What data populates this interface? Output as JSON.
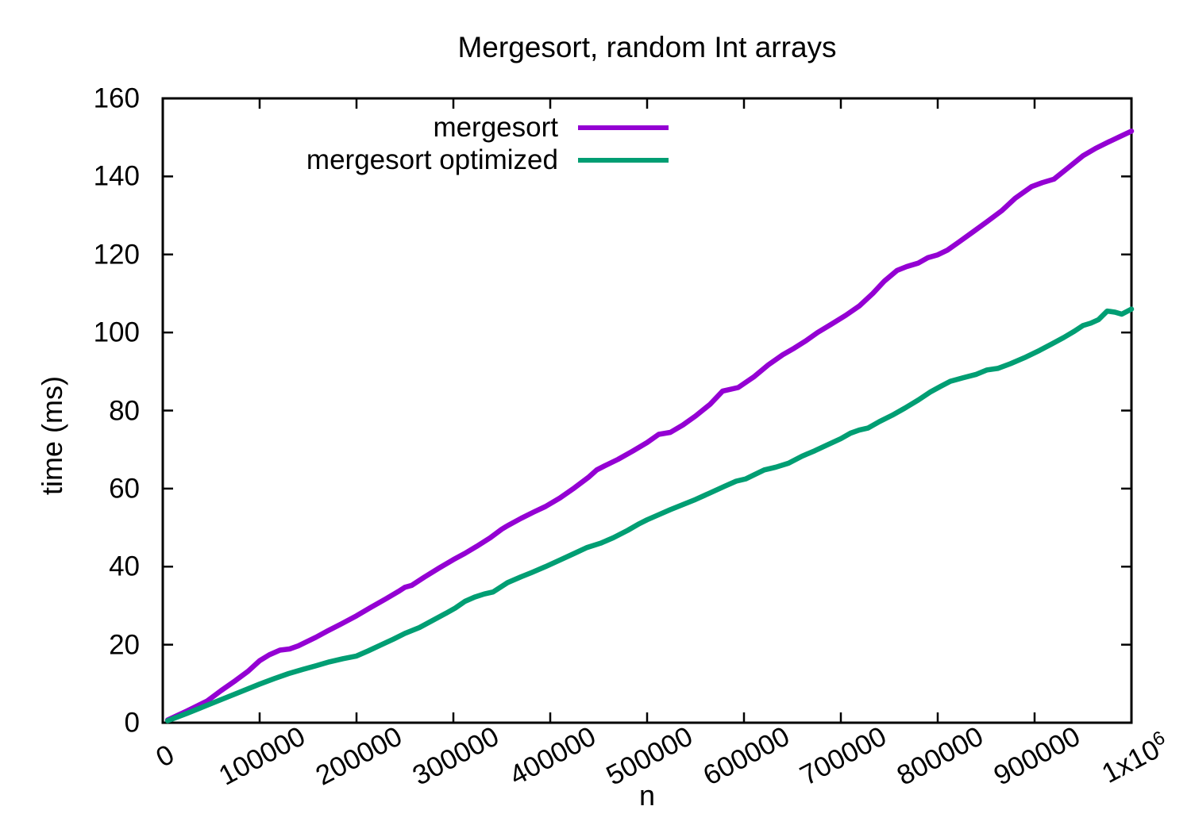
{
  "title": "Mergesort, random Int arrays",
  "axes": {
    "x_title": "n",
    "y_title": "time (ms)"
  },
  "legend": {
    "items": [
      {
        "label": "mergesort",
        "color": "#9400d3"
      },
      {
        "label": "mergesort optimized",
        "color": "#009e73"
      }
    ]
  },
  "chart_data": {
    "type": "line",
    "title": "Mergesort, random Int arrays",
    "xlabel": "n",
    "ylabel": "time (ms)",
    "xlim": [
      0,
      1000000
    ],
    "ylim": [
      0,
      160
    ],
    "grid": false,
    "legend_position": "inside top center",
    "x_ticks": {
      "values": [
        0,
        100000,
        200000,
        300000,
        400000,
        500000,
        600000,
        700000,
        800000,
        900000,
        1000000
      ],
      "labels": [
        "0",
        "100000",
        "200000",
        "300000",
        "400000",
        "500000",
        "600000",
        "700000",
        "800000",
        "900000",
        "1x10⁶"
      ]
    },
    "y_ticks": {
      "values": [
        0,
        20,
        40,
        60,
        80,
        100,
        120,
        140,
        160
      ],
      "labels": [
        "0",
        "20",
        "40",
        "60",
        "80",
        "100",
        "120",
        "140",
        "160"
      ]
    },
    "series": [
      {
        "name": "mergesort",
        "color": "#9400d3",
        "points": [
          [
            5000,
            0.7
          ],
          [
            25000,
            3.0
          ],
          [
            46000,
            5.6
          ],
          [
            60000,
            8.2
          ],
          [
            75000,
            10.8
          ],
          [
            88000,
            13.2
          ],
          [
            100000,
            15.9
          ],
          [
            110000,
            17.4
          ],
          [
            121000,
            18.6
          ],
          [
            131000,
            18.9
          ],
          [
            140000,
            19.7
          ],
          [
            158000,
            21.9
          ],
          [
            170000,
            23.5
          ],
          [
            184000,
            25.3
          ],
          [
            200000,
            27.4
          ],
          [
            215000,
            29.6
          ],
          [
            230000,
            31.7
          ],
          [
            243000,
            33.6
          ],
          [
            250000,
            34.7
          ],
          [
            257000,
            35.2
          ],
          [
            270000,
            37.3
          ],
          [
            285000,
            39.6
          ],
          [
            300000,
            41.8
          ],
          [
            312000,
            43.4
          ],
          [
            324000,
            45.2
          ],
          [
            338000,
            47.4
          ],
          [
            350000,
            49.6
          ],
          [
            356000,
            50.5
          ],
          [
            370000,
            52.4
          ],
          [
            383000,
            54.0
          ],
          [
            395000,
            55.4
          ],
          [
            410000,
            57.6
          ],
          [
            425000,
            60.2
          ],
          [
            440000,
            63.0
          ],
          [
            448000,
            64.8
          ],
          [
            456000,
            65.8
          ],
          [
            470000,
            67.5
          ],
          [
            485000,
            69.6
          ],
          [
            500000,
            71.8
          ],
          [
            512000,
            73.9
          ],
          [
            524000,
            74.4
          ],
          [
            537000,
            76.3
          ],
          [
            550000,
            78.6
          ],
          [
            565000,
            81.6
          ],
          [
            578000,
            85.0
          ],
          [
            594000,
            85.9
          ],
          [
            610000,
            88.6
          ],
          [
            625000,
            91.7
          ],
          [
            640000,
            94.3
          ],
          [
            652000,
            96.0
          ],
          [
            664000,
            97.9
          ],
          [
            676000,
            100.0
          ],
          [
            690000,
            102.1
          ],
          [
            705000,
            104.4
          ],
          [
            719000,
            106.8
          ],
          [
            733000,
            110.0
          ],
          [
            745000,
            113.2
          ],
          [
            758000,
            115.9
          ],
          [
            768000,
            116.9
          ],
          [
            780000,
            117.8
          ],
          [
            790000,
            119.2
          ],
          [
            800000,
            119.9
          ],
          [
            810000,
            121.1
          ],
          [
            822000,
            123.2
          ],
          [
            836000,
            125.7
          ],
          [
            851000,
            128.4
          ],
          [
            866000,
            131.2
          ],
          [
            880000,
            134.4
          ],
          [
            897000,
            137.4
          ],
          [
            908000,
            138.4
          ],
          [
            920000,
            139.3
          ],
          [
            935000,
            142.3
          ],
          [
            950000,
            145.3
          ],
          [
            963000,
            147.2
          ],
          [
            977000,
            148.9
          ],
          [
            988000,
            150.2
          ],
          [
            1000000,
            151.6
          ]
        ]
      },
      {
        "name": "mergesort optimized",
        "color": "#009e73",
        "points": [
          [
            5000,
            0.5
          ],
          [
            25000,
            2.4
          ],
          [
            50000,
            4.9
          ],
          [
            75000,
            7.4
          ],
          [
            100000,
            9.9
          ],
          [
            115000,
            11.3
          ],
          [
            130000,
            12.6
          ],
          [
            145000,
            13.7
          ],
          [
            158000,
            14.6
          ],
          [
            172000,
            15.6
          ],
          [
            186000,
            16.4
          ],
          [
            200000,
            17.1
          ],
          [
            212000,
            18.4
          ],
          [
            225000,
            19.9
          ],
          [
            238000,
            21.4
          ],
          [
            250000,
            22.9
          ],
          [
            265000,
            24.4
          ],
          [
            280000,
            26.4
          ],
          [
            292000,
            28.0
          ],
          [
            302000,
            29.4
          ],
          [
            312000,
            31.1
          ],
          [
            322000,
            32.2
          ],
          [
            332000,
            33.0
          ],
          [
            341000,
            33.5
          ],
          [
            356000,
            35.9
          ],
          [
            370000,
            37.4
          ],
          [
            381000,
            38.5
          ],
          [
            395000,
            40.0
          ],
          [
            410000,
            41.7
          ],
          [
            425000,
            43.4
          ],
          [
            438000,
            44.9
          ],
          [
            452000,
            46.0
          ],
          [
            465000,
            47.4
          ],
          [
            480000,
            49.3
          ],
          [
            492000,
            51.0
          ],
          [
            500000,
            52.0
          ],
          [
            512000,
            53.3
          ],
          [
            524000,
            54.6
          ],
          [
            536000,
            55.8
          ],
          [
            550000,
            57.2
          ],
          [
            565000,
            58.9
          ],
          [
            580000,
            60.6
          ],
          [
            592000,
            61.9
          ],
          [
            602000,
            62.5
          ],
          [
            611000,
            63.6
          ],
          [
            621000,
            64.8
          ],
          [
            628000,
            65.2
          ],
          [
            633000,
            65.5
          ],
          [
            646000,
            66.5
          ],
          [
            660000,
            68.3
          ],
          [
            673000,
            69.7
          ],
          [
            686000,
            71.2
          ],
          [
            700000,
            72.8
          ],
          [
            710000,
            74.2
          ],
          [
            719000,
            75.0
          ],
          [
            728000,
            75.5
          ],
          [
            740000,
            77.2
          ],
          [
            753000,
            78.8
          ],
          [
            766000,
            80.6
          ],
          [
            780000,
            82.7
          ],
          [
            792000,
            84.7
          ],
          [
            803000,
            86.2
          ],
          [
            813000,
            87.5
          ],
          [
            826000,
            88.4
          ],
          [
            840000,
            89.3
          ],
          [
            851000,
            90.4
          ],
          [
            862000,
            90.8
          ],
          [
            875000,
            92.0
          ],
          [
            891000,
            93.7
          ],
          [
            905000,
            95.4
          ],
          [
            918000,
            97.1
          ],
          [
            930000,
            98.7
          ],
          [
            941000,
            100.3
          ],
          [
            950000,
            101.8
          ],
          [
            958000,
            102.4
          ],
          [
            966000,
            103.3
          ],
          [
            975000,
            105.5
          ],
          [
            983000,
            105.2
          ],
          [
            990000,
            104.7
          ],
          [
            1000000,
            106.0
          ]
        ]
      }
    ]
  }
}
